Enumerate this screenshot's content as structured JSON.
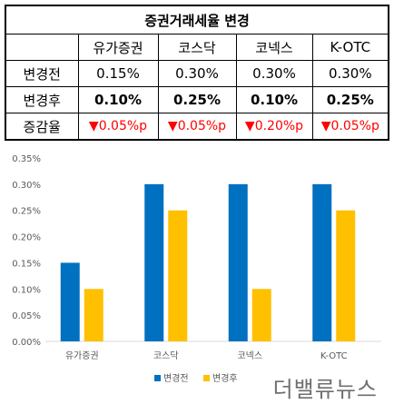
{
  "table": {
    "title": "증권거래세율 변경",
    "headers": [
      "",
      "유가증권",
      "코스닥",
      "코넥스",
      "K-OTC"
    ],
    "rows": [
      {
        "label": "변경전",
        "values": [
          "0.15%",
          "0.30%",
          "0.30%",
          "0.30%"
        ]
      },
      {
        "label": "변경후",
        "values": [
          "0.10%",
          "0.25%",
          "0.10%",
          "0.25%"
        ]
      },
      {
        "label": "증감율",
        "values": [
          "▼0.05%p",
          "▼0.05%p",
          "▼0.20%p",
          "▼0.05%p"
        ]
      }
    ]
  },
  "chart_data": {
    "type": "bar",
    "categories": [
      "유가증권",
      "코스닥",
      "코넥스",
      "K-OTC"
    ],
    "series": [
      {
        "name": "변경전",
        "values": [
          0.15,
          0.3,
          0.3,
          0.3
        ],
        "color": "#0070c0"
      },
      {
        "name": "변경후",
        "values": [
          0.1,
          0.25,
          0.1,
          0.25
        ],
        "color": "#ffc000"
      }
    ],
    "yticks": [
      "0.00%",
      "0.05%",
      "0.10%",
      "0.15%",
      "0.20%",
      "0.25%",
      "0.30%",
      "0.35%"
    ],
    "ylim": [
      0,
      0.35
    ],
    "legend": "bottom",
    "grid": false
  },
  "watermark": "더밸류뉴스"
}
